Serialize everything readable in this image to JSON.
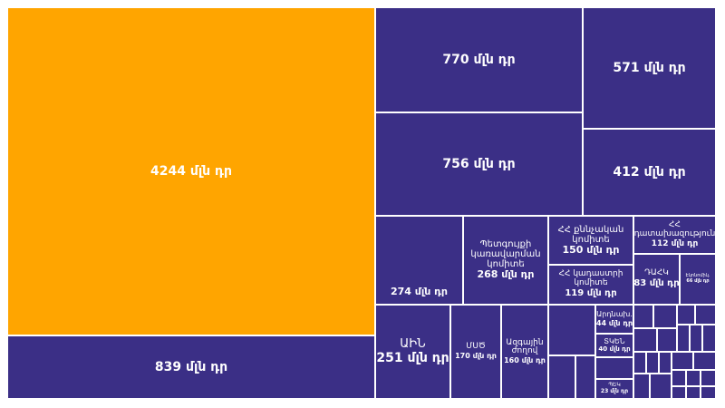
{
  "colors": {
    "primary": "#3b2f86",
    "highlight": "#ffa500",
    "border": "#ffffff"
  },
  "chart_data": {
    "type": "treemap",
    "unit": "մլն դր",
    "items": [
      {
        "id": "a01",
        "name": "",
        "value": 4244,
        "value_label": "4244 մլն դր",
        "highlight": true
      },
      {
        "id": "a02",
        "name": "",
        "value": 839,
        "value_label": "839 մլն դր"
      },
      {
        "id": "a03",
        "name": "",
        "value": 770,
        "value_label": "770 մլն դր"
      },
      {
        "id": "a04",
        "name": "",
        "value": 571,
        "value_label": "571 մլն դր"
      },
      {
        "id": "a05",
        "name": "",
        "value": 756,
        "value_label": "756 մլն դր"
      },
      {
        "id": "a06",
        "name": "",
        "value": 412,
        "value_label": "412 մլն դր"
      },
      {
        "id": "a07",
        "name": "",
        "value": 274,
        "value_label": "274 մլն դր"
      },
      {
        "id": "a08",
        "name": "Պետգույքի կառավարման կոմիտե",
        "value": 268,
        "value_label": "268 մլն դր"
      },
      {
        "id": "a09",
        "name": "ՀՀ քննչական կոմիտե",
        "value": 150,
        "value_label": "150 մլն դր"
      },
      {
        "id": "a10",
        "name": "ՀՀ",
        "value": 112,
        "value_label": "112 մլն դր",
        "name2": "դատախազություն"
      },
      {
        "id": "a11",
        "name": "ՀՀ կադաստրի կոմիտե",
        "value": 119,
        "value_label": "119 մլն դր"
      },
      {
        "id": "a12",
        "name": "ԴԱՀԿ",
        "value": 83,
        "value_label": "83 մլն դր"
      },
      {
        "id": "a13",
        "name": "Էկոնոմիկ.",
        "value": 66,
        "value_label": "66 մլն դր"
      },
      {
        "id": "a14",
        "name": "ԱԻՆ",
        "value": 251,
        "value_label": "251 մլն դր"
      },
      {
        "id": "a15",
        "name": "ՄՍԾ",
        "value": 170,
        "value_label": "170 մլն դր"
      },
      {
        "id": "a16",
        "name": "Ազգային ժողով",
        "value": 160,
        "value_label": "160 մլն դր"
      },
      {
        "id": "a17",
        "name": "Արդնախ.",
        "value": 44,
        "value_label": "44 մլն դր"
      },
      {
        "id": "a18",
        "name": "ՏԿԵՆ",
        "value": 40,
        "value_label": "40 մլն դր"
      },
      {
        "id": "a19",
        "name": "ՊԵԿ",
        "value": 23,
        "value_label": "23 մլն դր"
      }
    ]
  }
}
